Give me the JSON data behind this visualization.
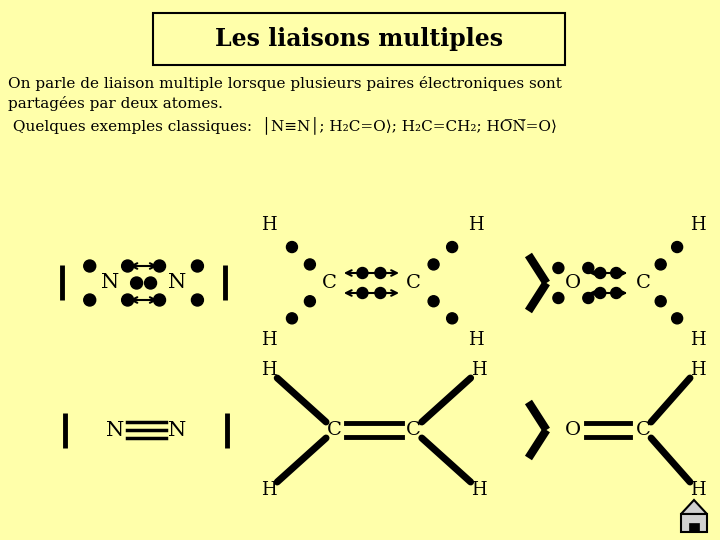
{
  "bg_color": "#FFFFAA",
  "title": "Les liaisons multiples",
  "line1": "On parle de liaison multiple lorsque plusieurs paires électroniques sont",
  "line2": "partagées par deux atomes.",
  "line3": " Quelques exemples classiques:  │N≡N│; H₂C=O⟩; H₂C=CH₂; HO̅N̅=O⟩"
}
